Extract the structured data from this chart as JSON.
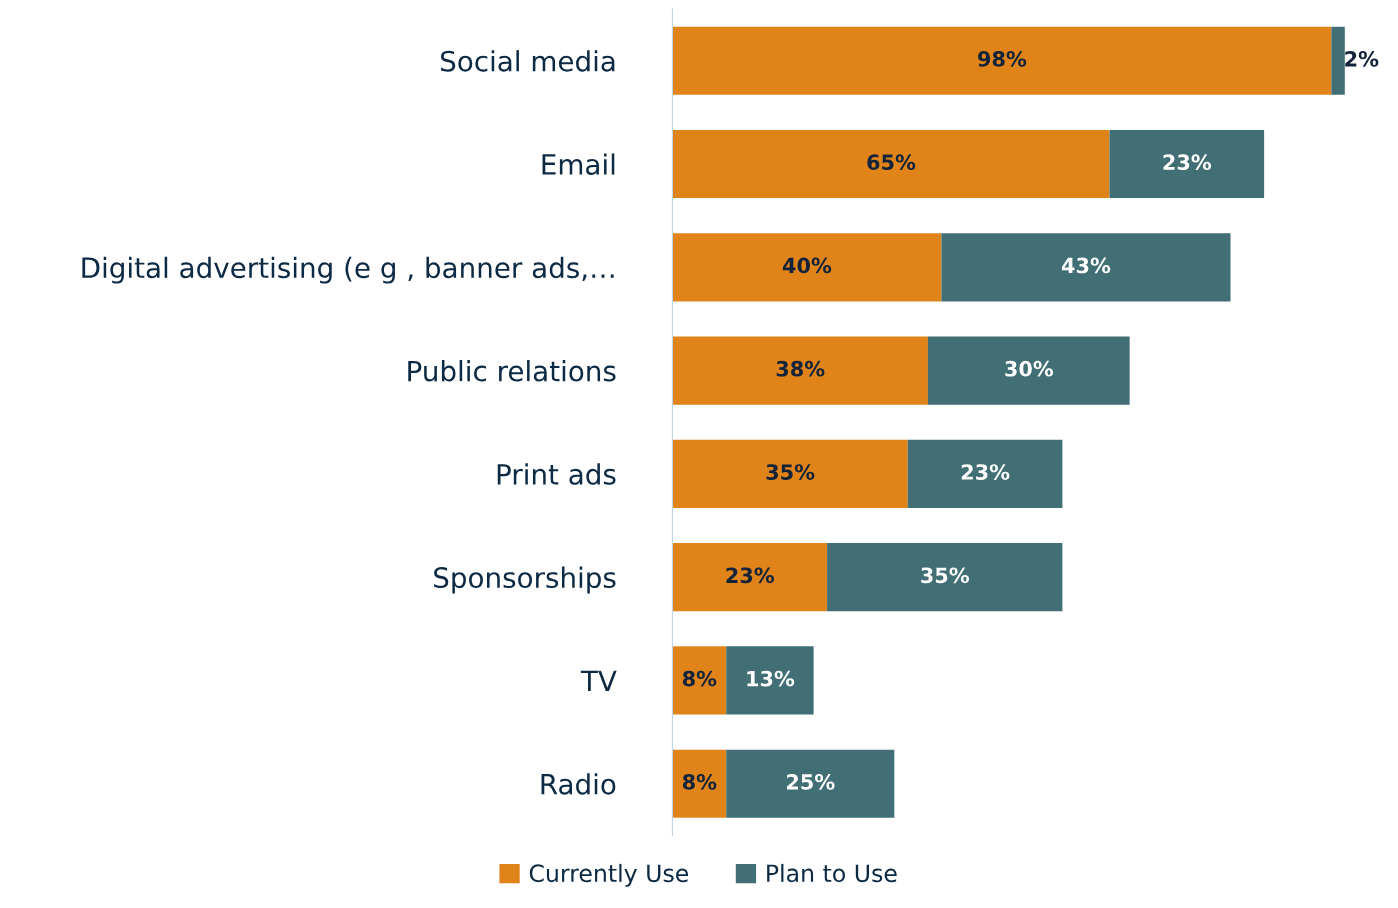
{
  "chart_data": {
    "type": "bar",
    "orientation": "horizontal",
    "stacked": true,
    "categories": [
      "Social media",
      "Email",
      "Digital advertising (e g , banner ads,…",
      "Public relations",
      "Print ads",
      "Sponsorships",
      "TV",
      "Radio"
    ],
    "series": [
      {
        "name": "Currently Use",
        "color": "#e0841a",
        "values": [
          98,
          65,
          40,
          38,
          35,
          23,
          8,
          8
        ],
        "value_labels": [
          "98%",
          "65%",
          "40%",
          "38%",
          "35%",
          "23%",
          "8%",
          "8%"
        ]
      },
      {
        "name": "Plan to Use",
        "color": "#416f75",
        "values": [
          2,
          23,
          43,
          30,
          23,
          35,
          13,
          25
        ],
        "value_labels": [
          "2%",
          "23%",
          "43%",
          "30%",
          "23%",
          "35%",
          "13%",
          "25%"
        ]
      }
    ],
    "tick_labels": "y",
    "grid": false,
    "legend": "bottom"
  }
}
